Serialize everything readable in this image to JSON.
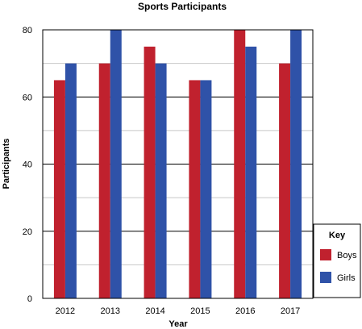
{
  "chart_data": {
    "type": "bar",
    "title": "Sports Participants",
    "xlabel": "Year",
    "ylabel": "Participants",
    "categories": [
      "2012",
      "2013",
      "2014",
      "2015",
      "2016",
      "2017"
    ],
    "series": [
      {
        "name": "Boys",
        "color": "#c0212e",
        "values": [
          65,
          70,
          75,
          65,
          80,
          70
        ]
      },
      {
        "name": "Girls",
        "color": "#2f52a8",
        "values": [
          70,
          80,
          70,
          65,
          75,
          80
        ]
      }
    ],
    "ylim": [
      0,
      80
    ],
    "yticks": [
      0,
      20,
      40,
      60,
      80
    ],
    "minor_gridlines": [
      10,
      30,
      50,
      70
    ],
    "grid": true,
    "legend": {
      "title": "Key",
      "placement": "right"
    }
  }
}
